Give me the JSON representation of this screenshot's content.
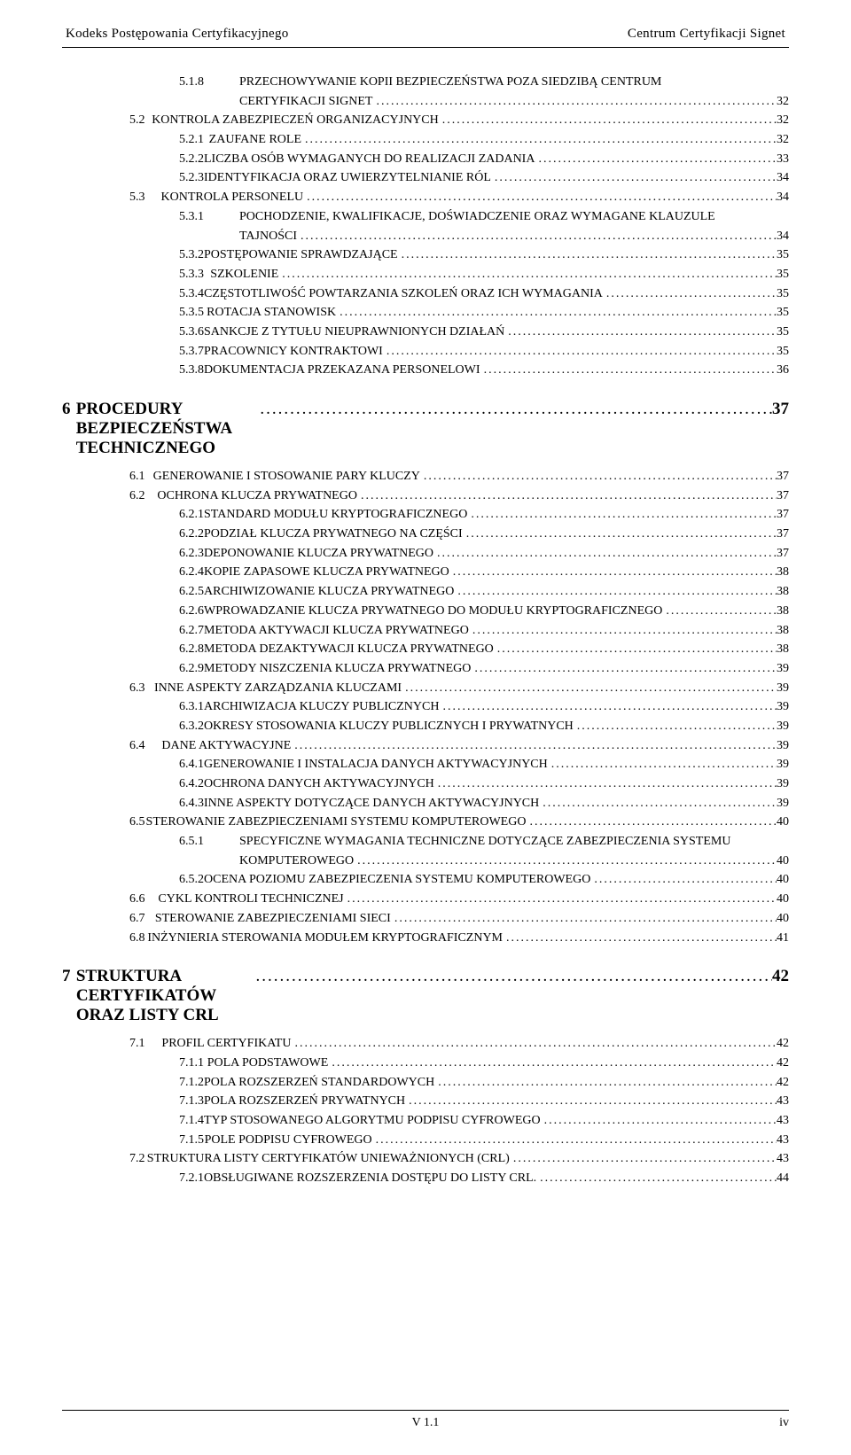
{
  "header": {
    "left": "Kodeks Postępowania Certyfikacyjnego",
    "right": "Centrum Certyfikacji Signet"
  },
  "footer": {
    "version": "V 1.1",
    "page": "iv"
  },
  "leader_fill": "..................................................................................................................................................................................................",
  "entries": [
    {
      "lvl": "b",
      "num": "5.1.8",
      "label": "Przechowywanie kopii bezpieczeństwa poza siedzibą Centrum",
      "page": "",
      "cont": true
    },
    {
      "lvl": "c",
      "num": "",
      "label": "Certyfikacji Signet",
      "page": "32"
    },
    {
      "lvl": "a",
      "num": "5.2",
      "label": "Kontrola zabezpieczeń organizacyjnych",
      "page": "32"
    },
    {
      "lvl": "b",
      "num": "5.2.1",
      "label": "Zaufane role",
      "page": "32"
    },
    {
      "lvl": "b",
      "num": "5.2.2",
      "label": "Liczba osób wymaganych do realizacji zadania",
      "page": "33"
    },
    {
      "lvl": "b",
      "num": "5.2.3",
      "label": "Identyfikacja oraz uwierzytelnianie ról",
      "page": "34"
    },
    {
      "lvl": "a",
      "num": "5.3",
      "label": "Kontrola personelu",
      "page": "34"
    },
    {
      "lvl": "b",
      "num": "5.3.1",
      "label": "Pochodzenie, kwalifikacje, doświadczenie oraz wymagane klauzule",
      "page": "",
      "cont": true
    },
    {
      "lvl": "c",
      "num": "",
      "label": "tajności",
      "page": "34"
    },
    {
      "lvl": "b",
      "num": "5.3.2",
      "label": "Postępowanie sprawdzające",
      "page": "35"
    },
    {
      "lvl": "b",
      "num": "5.3.3",
      "label": "Szkolenie",
      "page": "35"
    },
    {
      "lvl": "b",
      "num": "5.3.4",
      "label": "Częstotliwość powtarzania szkoleń oraz ich wymagania",
      "page": "35"
    },
    {
      "lvl": "b",
      "num": "5.3.5",
      "label": "Rotacja stanowisk",
      "page": "35"
    },
    {
      "lvl": "b",
      "num": "5.3.6",
      "label": "Sankcje z tytułu nieuprawnionych działań",
      "page": "35"
    },
    {
      "lvl": "b",
      "num": "5.3.7",
      "label": "Pracownicy kontraktowi",
      "page": "35"
    },
    {
      "lvl": "b",
      "num": "5.3.8",
      "label": "Dokumentacja przekazana personelowi",
      "page": "36"
    },
    {
      "lvl": "ch",
      "num": "6",
      "label": "Procedury bezpieczeństwa technicznego",
      "page": "37"
    },
    {
      "lvl": "a",
      "num": "6.1",
      "label": "Generowanie i stosowanie pary kluczy",
      "page": "37"
    },
    {
      "lvl": "a",
      "num": "6.2",
      "label": "Ochrona klucza prywatnego",
      "page": "37"
    },
    {
      "lvl": "b",
      "num": "6.2.1",
      "label": "Standard modułu kryptograficznego",
      "page": "37"
    },
    {
      "lvl": "b",
      "num": "6.2.2",
      "label": "Podział klucza prywatnego na części",
      "page": "37"
    },
    {
      "lvl": "b",
      "num": "6.2.3",
      "label": "Deponowanie klucza prywatnego",
      "page": "37"
    },
    {
      "lvl": "b",
      "num": "6.2.4",
      "label": "Kopie zapasowe klucza prywatnego",
      "page": "38"
    },
    {
      "lvl": "b",
      "num": "6.2.5",
      "label": "Archiwizowanie klucza prywatnego",
      "page": "38"
    },
    {
      "lvl": "b",
      "num": "6.2.6",
      "label": "Wprowadzanie klucza prywatnego do modułu kryptograficznego",
      "page": "38"
    },
    {
      "lvl": "b",
      "num": "6.2.7",
      "label": "Metoda aktywacji klucza prywatnego",
      "page": "38"
    },
    {
      "lvl": "b",
      "num": "6.2.8",
      "label": "Metoda dezaktywacji klucza prywatnego",
      "page": "38"
    },
    {
      "lvl": "b",
      "num": "6.2.9",
      "label": "Metody niszczenia klucza prywatnego",
      "page": "39"
    },
    {
      "lvl": "a",
      "num": "6.3",
      "label": "Inne aspekty zarządzania kluczami",
      "page": "39"
    },
    {
      "lvl": "b",
      "num": "6.3.1",
      "label": "Archiwizacja kluczy publicznych",
      "page": "39"
    },
    {
      "lvl": "b",
      "num": "6.3.2",
      "label": "Okresy stosowania kluczy publicznych i prywatnych",
      "page": "39"
    },
    {
      "lvl": "a",
      "num": "6.4",
      "label": "Dane aktywacyjne",
      "page": "39"
    },
    {
      "lvl": "b",
      "num": "6.4.1",
      "label": "Generowanie i instalacja danych aktywacyjnych",
      "page": "39"
    },
    {
      "lvl": "b",
      "num": "6.4.2",
      "label": "Ochrona danych aktywacyjnych",
      "page": "39"
    },
    {
      "lvl": "b",
      "num": "6.4.3",
      "label": "Inne aspekty dotyczące danych aktywacyjnych",
      "page": "39"
    },
    {
      "lvl": "a",
      "num": "6.5",
      "label": "Sterowanie zabezpieczeniami systemu komputerowego",
      "page": "40"
    },
    {
      "lvl": "b",
      "num": "6.5.1",
      "label": "Specyficzne wymagania techniczne dotyczące zabezpieczenia systemu",
      "page": "",
      "cont": true
    },
    {
      "lvl": "c",
      "num": "",
      "label": "komputerowego",
      "page": "40"
    },
    {
      "lvl": "b",
      "num": "6.5.2",
      "label": "Ocena poziomu zabezpieczenia systemu komputerowego",
      "page": "40"
    },
    {
      "lvl": "a",
      "num": "6.6",
      "label": "Cykl kontroli technicznej",
      "page": "40"
    },
    {
      "lvl": "a",
      "num": "6.7",
      "label": "Sterowanie zabezpieczeniami sieci",
      "page": "40"
    },
    {
      "lvl": "a",
      "num": "6.8",
      "label": "Inżynieria sterowania modułem kryptograficznym",
      "page": "41"
    },
    {
      "lvl": "ch",
      "num": "7",
      "label": "Struktura certyfikatów oraz listy CRL",
      "page": "42"
    },
    {
      "lvl": "a",
      "num": "7.1",
      "label": "Profil certyfikatu",
      "page": "42"
    },
    {
      "lvl": "b",
      "num": "7.1.1",
      "label": "Pola podstawowe",
      "page": "42"
    },
    {
      "lvl": "b",
      "num": "7.1.2",
      "label": "Pola rozszerzeń standardowych",
      "page": "42"
    },
    {
      "lvl": "b",
      "num": "7.1.3",
      "label": "Pola rozszerzeń prywatnych",
      "page": "43"
    },
    {
      "lvl": "b",
      "num": "7.1.4",
      "label": "Typ stosowanego algorytmu podpisu cyfrowego",
      "page": "43"
    },
    {
      "lvl": "b",
      "num": "7.1.5",
      "label": "Pole podpisu cyfrowego",
      "page": "43"
    },
    {
      "lvl": "a",
      "num": "7.2",
      "label": "Struktura listy certyfikatów unieważnionych (CRL)",
      "page": "43"
    },
    {
      "lvl": "b",
      "num": "7.2.1",
      "label": "Obsługiwane rozszerzenia dostępu do listy CRL.",
      "page": "44"
    }
  ]
}
